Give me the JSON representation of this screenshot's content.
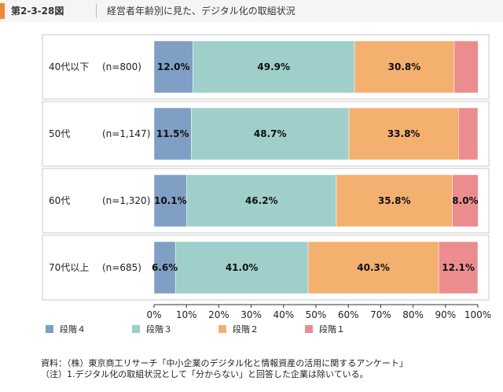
{
  "header": {
    "figure_number": "第2-3-28図",
    "title": "経営者年齢別に見た、デジタル化の取組状況"
  },
  "chart_data": {
    "type": "bar",
    "orientation": "horizontal",
    "stacked": true,
    "title": "経営者年齢別に見た、デジタル化の取組状況",
    "categories": [
      "40代以下",
      "50代",
      "60代",
      "70代以上"
    ],
    "sample_sizes": [
      "(n=800)",
      "(n=1,147)",
      "(n=1,320)",
      "(n=685)"
    ],
    "series": [
      {
        "name": "段階４",
        "color": "#7f9fc4",
        "values": [
          12.0,
          11.5,
          10.1,
          6.6
        ],
        "labels": [
          "12.0%",
          "11.5%",
          "10.1%",
          "6.6%"
        ]
      },
      {
        "name": "段階３",
        "color": "#9ecfcb",
        "values": [
          49.9,
          48.7,
          46.2,
          41.0
        ],
        "labels": [
          "49.9%",
          "48.7%",
          "46.2%",
          "41.0%"
        ]
      },
      {
        "name": "段階２",
        "color": "#f3b06f",
        "values": [
          30.8,
          33.8,
          35.8,
          40.3
        ],
        "labels": [
          "30.8%",
          "33.8%",
          "35.8%",
          "40.3%"
        ]
      },
      {
        "name": "段階１",
        "color": "#ec8d8d",
        "values": [
          7.4,
          6.0,
          8.0,
          12.1
        ],
        "labels": [
          "",
          "",
          "8.0%",
          "12.1%"
        ]
      }
    ],
    "xlim": [
      0,
      100
    ],
    "x_ticks": [
      "0%",
      "10%",
      "20%",
      "30%",
      "40%",
      "50%",
      "60%",
      "70%",
      "80%",
      "90%",
      "100%"
    ],
    "legend_position": "bottom",
    "grid": false
  },
  "footnotes": [
    "資料：（株）東京商工リサーチ「中小企業のデジタル化と情報資産の活用に関するアンケート」",
    "（注）1.デジタル化の取組状況として「分からない」と回答した企業は除いている。"
  ]
}
